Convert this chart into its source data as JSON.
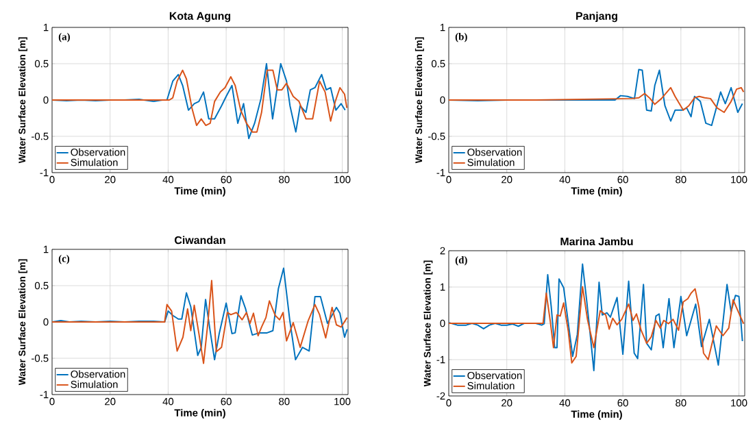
{
  "chart_data": [
    {
      "type": "line",
      "title": "Kota Agung",
      "xlabel": "Time (min)",
      "ylabel": "Water Surface Elevation [m]",
      "annotations": [
        "(a)"
      ],
      "xlim": [
        0,
        102
      ],
      "ylim": [
        -1,
        1
      ],
      "xticks": [
        0,
        20,
        40,
        60,
        80,
        100
      ],
      "yticks": [
        -1,
        -0.5,
        0,
        0.5,
        1
      ],
      "grid": true,
      "legend": "bottom left",
      "series": [
        {
          "name": "Observation",
          "color": "#0072bd",
          "x": [
            0,
            5,
            10,
            15,
            20,
            25,
            30,
            35,
            38,
            39.6,
            41.6,
            43.5,
            45,
            47,
            49,
            50.6,
            52.2,
            54,
            56,
            58.4,
            60,
            62,
            64,
            66,
            67.8,
            69.8,
            72,
            73.9,
            76,
            78.8,
            80.8,
            82,
            84,
            85.5,
            87.5,
            89,
            90.6,
            92.9,
            94.5,
            96,
            97.8,
            99.6,
            101
          ],
          "values": [
            0,
            -0.01,
            0,
            -0.01,
            0,
            0,
            0.01,
            -0.02,
            0,
            0,
            0.26,
            0.35,
            0.2,
            -0.14,
            -0.05,
            -0.02,
            0.11,
            -0.26,
            -0.26,
            -0.08,
            0.05,
            0.2,
            -0.32,
            -0.05,
            -0.53,
            -0.32,
            0.02,
            0.5,
            -0.26,
            0.5,
            0.26,
            -0.08,
            -0.44,
            -0.08,
            -0.17,
            0.14,
            0.17,
            0.35,
            0.14,
            0.17,
            -0.14,
            -0.05,
            -0.14
          ]
        },
        {
          "name": "Simulation",
          "color": "#d95319",
          "x": [
            0,
            20,
            40.4,
            41.6,
            43.1,
            45,
            46.3,
            48.2,
            49.8,
            51.4,
            53,
            54.5,
            56,
            58,
            59.6,
            61.6,
            63.1,
            65,
            67,
            69,
            70.6,
            72.2,
            74.1,
            76.1,
            77.6,
            79.2,
            80.8,
            83.1,
            85.1,
            87.5,
            89.8,
            92.2,
            94.1,
            96,
            97.6,
            99.2,
            100.8,
            101.6
          ],
          "values": [
            0,
            0,
            0,
            0.03,
            0.26,
            0.41,
            0.29,
            -0.11,
            -0.35,
            -0.26,
            -0.35,
            -0.32,
            -0.02,
            0.11,
            0.17,
            0.32,
            0.2,
            -0.14,
            -0.32,
            -0.44,
            -0.44,
            -0.17,
            0.41,
            0.41,
            0.14,
            0.14,
            0.23,
            0.05,
            -0.02,
            -0.26,
            -0.26,
            0.26,
            0.11,
            -0.29,
            -0.02,
            0.17,
            0.08,
            -0.11
          ]
        }
      ]
    },
    {
      "type": "line",
      "title": "Panjang",
      "xlabel": "Time (min)",
      "ylabel": "Water Surface Elevation [m]",
      "annotations": [
        "(b)"
      ],
      "xlim": [
        0,
        102
      ],
      "ylim": [
        -1,
        1
      ],
      "xticks": [
        0,
        20,
        40,
        60,
        80,
        100
      ],
      "yticks": [
        -1,
        -0.5,
        0,
        0.5,
        1
      ],
      "grid": true,
      "legend": "bottom left",
      "series": [
        {
          "name": "Observation",
          "color": "#0072bd",
          "x": [
            0,
            10,
            20,
            30,
            40,
            50,
            57.3,
            59.2,
            61.6,
            64,
            65.5,
            66.7,
            68.2,
            69.8,
            71,
            72.6,
            74.5,
            76.5,
            78,
            80.4,
            82,
            83.5,
            84.7,
            86.7,
            88.6,
            90.6,
            92.2,
            93.7,
            95.3,
            97.3,
            99.6,
            101.2
          ],
          "values": [
            0,
            -0.01,
            0,
            0,
            0,
            0,
            0,
            0.06,
            0.05,
            0.02,
            0.42,
            0.41,
            -0.14,
            -0.15,
            0.2,
            0.41,
            -0.08,
            -0.29,
            -0.14,
            -0.14,
            -0.11,
            -0.23,
            0.05,
            -0.02,
            -0.32,
            -0.35,
            -0.11,
            0.11,
            -0.05,
            0.17,
            -0.17,
            -0.05
          ]
        },
        {
          "name": "Simulation",
          "color": "#d95319",
          "x": [
            0,
            30,
            63.1,
            65.5,
            67.5,
            69.4,
            71,
            73.3,
            76.5,
            78,
            80.8,
            82.7,
            84.7,
            86.3,
            88.2,
            90.2,
            92.5,
            94.9,
            97.3,
            99.2,
            100.8,
            101.6
          ],
          "values": [
            0,
            0,
            0.02,
            0.03,
            0.09,
            0.02,
            -0.06,
            0.02,
            0.17,
            0.05,
            -0.14,
            -0.08,
            0.03,
            0.05,
            0.03,
            0.02,
            -0.11,
            -0.17,
            -0.02,
            0.15,
            0.17,
            0.11
          ]
        }
      ]
    },
    {
      "type": "line",
      "title": "Ciwandan",
      "xlabel": "Time (min)",
      "ylabel": "Water Surface Elevation [m]",
      "annotations": [
        "(c)"
      ],
      "xlim": [
        0,
        102
      ],
      "ylim": [
        -1,
        1
      ],
      "xticks": [
        0,
        20,
        40,
        60,
        80,
        100
      ],
      "yticks": [
        -1,
        -0.5,
        0,
        0.5,
        1
      ],
      "grid": true,
      "legend": "bottom left",
      "series": [
        {
          "name": "Observation",
          "color": "#0072bd",
          "x": [
            0,
            3,
            6,
            10,
            15,
            20,
            25,
            30,
            35,
            38.8,
            40,
            41.6,
            43.5,
            44.7,
            46.3,
            47.8,
            50.2,
            51.4,
            52.9,
            54.5,
            56,
            57.6,
            60,
            62,
            63.1,
            65.1,
            66.7,
            69,
            71.4,
            74.1,
            76.1,
            78,
            79.8,
            81.9,
            83.9,
            86.3,
            88.6,
            90.6,
            92.5,
            94.9,
            98,
            99.2,
            100.8,
            101.7
          ],
          "values": [
            0,
            0.02,
            0,
            0.01,
            0,
            0.01,
            0,
            0.01,
            0.01,
            0,
            0.15,
            0.09,
            0.04,
            0.04,
            0.4,
            0.21,
            -0.46,
            -0.35,
            0.31,
            -0.13,
            -0.52,
            -0.16,
            0.26,
            -0.16,
            -0.15,
            0.36,
            0.18,
            -0.18,
            -0.15,
            -0.15,
            -0.12,
            0.46,
            0.74,
            0.03,
            -0.52,
            -0.35,
            -0.4,
            0.35,
            0.35,
            -0.02,
            0.2,
            0.12,
            -0.21,
            -0.1
          ]
        },
        {
          "name": "Simulation",
          "color": "#d95319",
          "x": [
            0,
            20,
            38.8,
            39.6,
            41.2,
            43.1,
            45.1,
            46.7,
            47.8,
            49,
            50.6,
            52.2,
            53.7,
            55,
            56.6,
            58.4,
            60.4,
            61.6,
            63.5,
            65.5,
            67,
            68.2,
            69.4,
            71,
            72.2,
            73.7,
            74.9,
            76.9,
            78.4,
            79.6,
            80.8,
            83.1,
            85.5,
            88.2,
            90.6,
            92.2,
            94.3,
            96.5,
            98,
            99.6,
            101.7
          ],
          "values": [
            0,
            0,
            0,
            0.24,
            0.15,
            -0.4,
            -0.21,
            0.18,
            -0.12,
            0.23,
            -0.16,
            -0.57,
            -0.01,
            0.57,
            -0.41,
            -0.35,
            0.13,
            0.1,
            0.13,
            0.03,
            0.13,
            -0.02,
            0.12,
            -0.19,
            -0.07,
            0.06,
            0.29,
            0.09,
            0.03,
            0.13,
            -0.26,
            -0.01,
            -0.35,
            0.01,
            0.24,
            0.1,
            -0.22,
            0.2,
            -0.04,
            -0.07,
            0.06
          ]
        }
      ]
    },
    {
      "type": "line",
      "title": "Marina Jambu",
      "xlabel": "Time (min)",
      "ylabel": "Water Surface Elevation [m]",
      "annotations": [
        "(d)"
      ],
      "xlim": [
        0,
        102
      ],
      "ylim": [
        -2,
        2
      ],
      "xticks": [
        0,
        20,
        40,
        60,
        80,
        100
      ],
      "yticks": [
        -2,
        -1,
        0,
        1,
        2
      ],
      "grid": true,
      "legend": "bottom left",
      "series": [
        {
          "name": "Observation",
          "color": "#0072bd",
          "x": [
            0,
            3,
            6,
            8,
            10,
            12,
            14,
            16,
            18,
            20,
            22,
            24,
            26,
            28,
            30,
            32,
            32.9,
            34.1,
            35.3,
            36.5,
            37.3,
            38,
            39.6,
            42.7,
            44.3,
            46.1,
            47.5,
            48.6,
            50,
            51.8,
            52.9,
            54.5,
            55.7,
            58,
            60,
            62,
            63.9,
            65.1,
            67.1,
            68.2,
            69.8,
            71.4,
            72.5,
            73.9,
            75.9,
            77.6,
            80,
            82,
            85.1,
            87.1,
            89.8,
            92.9,
            95.9,
            97.3,
            98.8,
            100,
            101.2
          ],
          "values": [
            0.02,
            -0.05,
            -0.05,
            0,
            -0.05,
            -0.15,
            -0.05,
            0,
            -0.05,
            -0.05,
            -0.02,
            -0.08,
            0,
            0,
            0,
            -0.05,
            -0.01,
            1.34,
            0.47,
            -0.67,
            -0.67,
            1.22,
            0.98,
            -0.91,
            -0.31,
            1.63,
            0.65,
            -0.19,
            -1.3,
            1.13,
            0.23,
            0.29,
            0.17,
            0.71,
            -0.85,
            1.16,
            -0.82,
            -0.97,
            1.07,
            -0.55,
            -0.73,
            0.2,
            0.26,
            -0.67,
            0.68,
            -0.67,
            0.74,
            -0.34,
            0.53,
            -0.64,
            0.11,
            -1.15,
            1.07,
            0.32,
            0.77,
            0.74,
            -0.49
          ]
        },
        {
          "name": "Simulation",
          "color": "#d95319",
          "x": [
            0,
            20,
            32.5,
            33.6,
            35,
            36.1,
            37.3,
            38.4,
            39.6,
            41.2,
            42.4,
            43.9,
            46.1,
            47.8,
            50,
            52.2,
            54.1,
            55.3,
            56.5,
            58,
            59.6,
            62,
            63.5,
            64.7,
            66.3,
            68.2,
            69.8,
            71.4,
            72.9,
            74.1,
            75.7,
            77.3,
            79.2,
            80.8,
            82.4,
            83.5,
            84.9,
            86.3,
            87.8,
            89.4,
            92.2,
            94.5,
            96.5,
            98,
            99.6,
            101.6
          ],
          "values": [
            0,
            0,
            0,
            0.83,
            0.05,
            -0.67,
            0.23,
            0.2,
            0.56,
            -0.22,
            -1.09,
            -0.91,
            1.01,
            0.11,
            -0.67,
            0.35,
            0.23,
            -0.16,
            0.14,
            -0.04,
            0.11,
            0.53,
            0.08,
            0.26,
            -0.19,
            -0.55,
            -0.37,
            0.08,
            -0.13,
            0.08,
            -0.01,
            0.11,
            -0.19,
            0.59,
            0.68,
            0.83,
            0.95,
            0.41,
            -0.82,
            -1.0,
            -0.07,
            -0.34,
            -0.13,
            0.65,
            0.35,
            -0.01
          ]
        }
      ]
    }
  ]
}
